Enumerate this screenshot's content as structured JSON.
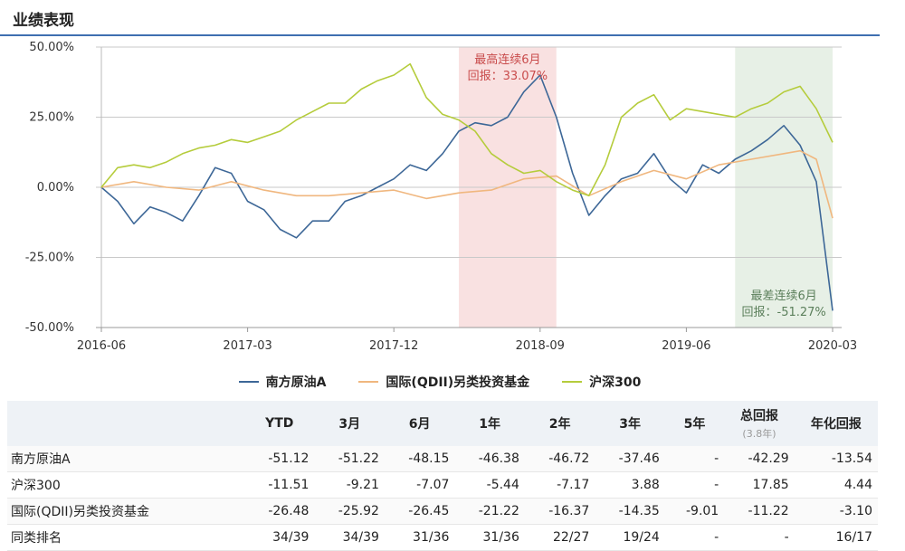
{
  "header": {
    "title": "业绩表现"
  },
  "chart_data": {
    "type": "line",
    "yticks": [
      "50.00%",
      "25.00%",
      "0.00%",
      "-25.00%",
      "-50.00%"
    ],
    "ylim": [
      -50,
      50
    ],
    "xticks": [
      "2016-06",
      "2017-03",
      "2017-12",
      "2018-09",
      "2019-06",
      "2020-03"
    ],
    "series": [
      {
        "name": "南方原油A",
        "color": "#3d6797",
        "points": [
          [
            "2016-06",
            0
          ],
          [
            "2016-07",
            -5
          ],
          [
            "2016-08",
            -13
          ],
          [
            "2016-09",
            -7
          ],
          [
            "2016-10",
            -9
          ],
          [
            "2016-11",
            -12
          ],
          [
            "2016-12",
            -3
          ],
          [
            "2017-01",
            7
          ],
          [
            "2017-02",
            5
          ],
          [
            "2017-03",
            -5
          ],
          [
            "2017-04",
            -8
          ],
          [
            "2017-05",
            -15
          ],
          [
            "2017-06",
            -18
          ],
          [
            "2017-07",
            -12
          ],
          [
            "2017-08",
            -12
          ],
          [
            "2017-09",
            -5
          ],
          [
            "2017-10",
            -3
          ],
          [
            "2017-11",
            0
          ],
          [
            "2017-12",
            3
          ],
          [
            "2018-01",
            8
          ],
          [
            "2018-02",
            6
          ],
          [
            "2018-03",
            12
          ],
          [
            "2018-04",
            20
          ],
          [
            "2018-05",
            23
          ],
          [
            "2018-06",
            22
          ],
          [
            "2018-07",
            25
          ],
          [
            "2018-08",
            34
          ],
          [
            "2018-09",
            40
          ],
          [
            "2018-10",
            25
          ],
          [
            "2018-11",
            5
          ],
          [
            "2018-12",
            -10
          ],
          [
            "2019-01",
            -3
          ],
          [
            "2019-02",
            3
          ],
          [
            "2019-03",
            5
          ],
          [
            "2019-04",
            12
          ],
          [
            "2019-05",
            3
          ],
          [
            "2019-06",
            -2
          ],
          [
            "2019-07",
            8
          ],
          [
            "2019-08",
            5
          ],
          [
            "2019-09",
            10
          ],
          [
            "2019-10",
            13
          ],
          [
            "2019-11",
            17
          ],
          [
            "2019-12",
            22
          ],
          [
            "2020-01",
            15
          ],
          [
            "2020-02",
            2
          ],
          [
            "2020-03",
            -44
          ]
        ]
      },
      {
        "name": "国际(QDII)另类投资基金",
        "color": "#f0b77f",
        "points": [
          [
            "2016-06",
            0
          ],
          [
            "2016-08",
            2
          ],
          [
            "2016-10",
            0
          ],
          [
            "2016-12",
            -1
          ],
          [
            "2017-02",
            2
          ],
          [
            "2017-04",
            -1
          ],
          [
            "2017-06",
            -3
          ],
          [
            "2017-08",
            -3
          ],
          [
            "2017-10",
            -2
          ],
          [
            "2017-12",
            -1
          ],
          [
            "2018-02",
            -4
          ],
          [
            "2018-04",
            -2
          ],
          [
            "2018-06",
            -1
          ],
          [
            "2018-08",
            3
          ],
          [
            "2018-10",
            4
          ],
          [
            "2018-12",
            -3
          ],
          [
            "2019-02",
            2
          ],
          [
            "2019-04",
            6
          ],
          [
            "2019-06",
            3
          ],
          [
            "2019-08",
            8
          ],
          [
            "2019-10",
            10
          ],
          [
            "2019-12",
            12
          ],
          [
            "2020-01",
            13
          ],
          [
            "2020-02",
            10
          ],
          [
            "2020-03",
            -11
          ]
        ]
      },
      {
        "name": "沪深300",
        "color": "#b5cc3c",
        "points": [
          [
            "2016-06",
            0
          ],
          [
            "2016-07",
            7
          ],
          [
            "2016-08",
            8
          ],
          [
            "2016-09",
            7
          ],
          [
            "2016-10",
            9
          ],
          [
            "2016-11",
            12
          ],
          [
            "2016-12",
            14
          ],
          [
            "2017-01",
            15
          ],
          [
            "2017-02",
            17
          ],
          [
            "2017-03",
            16
          ],
          [
            "2017-04",
            18
          ],
          [
            "2017-05",
            20
          ],
          [
            "2017-06",
            24
          ],
          [
            "2017-07",
            27
          ],
          [
            "2017-08",
            30
          ],
          [
            "2017-09",
            30
          ],
          [
            "2017-10",
            35
          ],
          [
            "2017-11",
            38
          ],
          [
            "2017-12",
            40
          ],
          [
            "2018-01",
            44
          ],
          [
            "2018-02",
            32
          ],
          [
            "2018-03",
            26
          ],
          [
            "2018-04",
            24
          ],
          [
            "2018-05",
            20
          ],
          [
            "2018-06",
            12
          ],
          [
            "2018-07",
            8
          ],
          [
            "2018-08",
            5
          ],
          [
            "2018-09",
            6
          ],
          [
            "2018-10",
            2
          ],
          [
            "2018-11",
            -1
          ],
          [
            "2018-12",
            -3
          ],
          [
            "2019-01",
            8
          ],
          [
            "2019-02",
            25
          ],
          [
            "2019-03",
            30
          ],
          [
            "2019-04",
            33
          ],
          [
            "2019-05",
            24
          ],
          [
            "2019-06",
            28
          ],
          [
            "2019-07",
            27
          ],
          [
            "2019-08",
            26
          ],
          [
            "2019-09",
            25
          ],
          [
            "2019-10",
            28
          ],
          [
            "2019-11",
            30
          ],
          [
            "2019-12",
            34
          ],
          [
            "2020-01",
            36
          ],
          [
            "2020-02",
            28
          ],
          [
            "2020-03",
            16
          ]
        ]
      }
    ],
    "annotations": [
      {
        "name": "best",
        "label1": "最高连续6月",
        "label2": "回报：33.07%",
        "start": "2018-04",
        "end": "2018-10",
        "color": "#f9e1e1",
        "text_color": "#c94c4c"
      },
      {
        "name": "worst",
        "label1": "最差连续6月",
        "label2": "回报：-51.27%",
        "start": "2019-09",
        "end": "2020-03",
        "color": "#e7f0e6",
        "text_color": "#5b7f5b"
      }
    ]
  },
  "legend": {
    "items": [
      {
        "label": "南方原油A",
        "color": "#3d6797"
      },
      {
        "label": "国际(QDII)另类投资基金",
        "color": "#f0b77f"
      },
      {
        "label": "沪深300",
        "color": "#b5cc3c"
      }
    ]
  },
  "table": {
    "headers": [
      "YTD",
      "3月",
      "6月",
      "1年",
      "2年",
      "3年",
      "5年",
      "总回报",
      "年化回报"
    ],
    "total_sub": "(3.8年)",
    "rows": [
      {
        "name": "南方原油A",
        "values": [
          "-51.12",
          "-51.22",
          "-48.15",
          "-46.38",
          "-46.72",
          "-37.46",
          "-",
          "-42.29",
          "-13.54"
        ]
      },
      {
        "name": "沪深300",
        "values": [
          "-11.51",
          "-9.21",
          "-7.07",
          "-5.44",
          "-7.17",
          "3.88",
          "-",
          "17.85",
          "4.44"
        ]
      },
      {
        "name": "国际(QDII)另类投资基金",
        "values": [
          "-26.48",
          "-25.92",
          "-26.45",
          "-21.22",
          "-16.37",
          "-14.35",
          "-9.01",
          "-11.22",
          "-3.10"
        ]
      },
      {
        "name": "同类排名",
        "values": [
          "34/39",
          "34/39",
          "31/36",
          "31/36",
          "22/27",
          "19/24",
          "-",
          "-",
          "16/17"
        ]
      }
    ]
  }
}
